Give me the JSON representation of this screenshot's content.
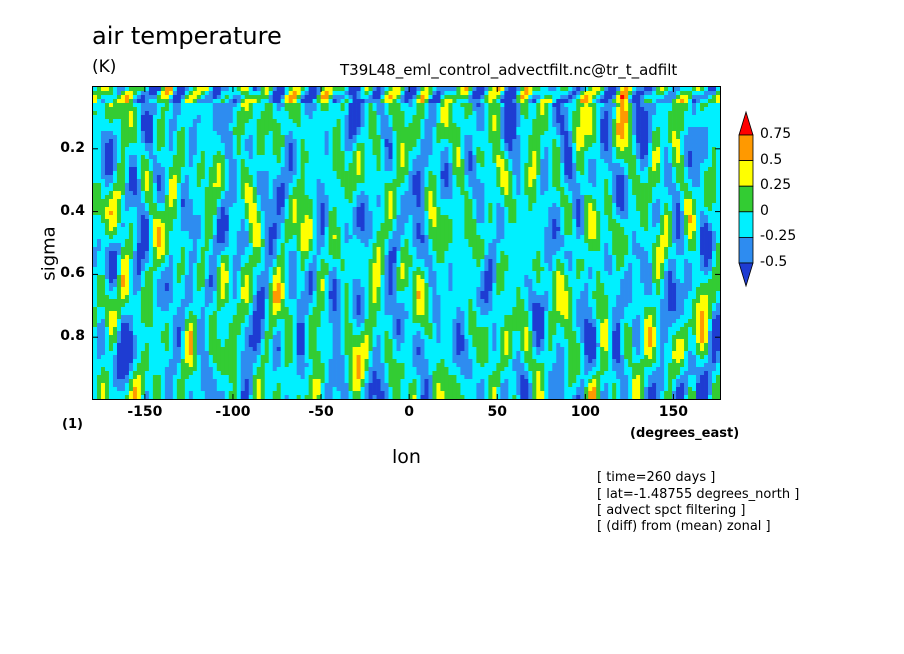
{
  "chart_data": {
    "type": "heatmap",
    "title": "air temperature",
    "units": "(K)",
    "source": "T39L48_eml_control_advectfilt.nc@tr_t_adfilt",
    "xlabel": "lon",
    "xunits": "(degrees_east)",
    "ylabel": "sigma",
    "multiplier_label": "(1)",
    "xlim": [
      -180,
      177
    ],
    "ylim": [
      1.0,
      0.0
    ],
    "x_ticks": [
      "-150",
      "-100",
      "-50",
      "0",
      "50",
      "100",
      "150"
    ],
    "x_tick_values": [
      -150,
      -100,
      -50,
      0,
      50,
      100,
      150
    ],
    "y_ticks": [
      "0.2",
      "0.4",
      "0.6",
      "0.8"
    ],
    "y_tick_values": [
      0.2,
      0.4,
      0.6,
      0.8
    ],
    "colorbar": {
      "levels": [
        "0.75",
        "0.5",
        "0.25",
        "0",
        "-0.25",
        "-0.5"
      ],
      "level_values": [
        0.75,
        0.5,
        0.25,
        0,
        -0.25,
        -0.5
      ],
      "colors": [
        "#ff0000",
        "#ff9900",
        "#ffff00",
        "#33cc33",
        "#00f0ff",
        "#2e8cf0",
        "#1e3cd2"
      ]
    },
    "annotations": [
      "[ time=260 days ]",
      "[ lat=-1.48755 degrees_north ]",
      "[ advect spct filtering ]",
      "[ (diff) from (mean) zonal ]"
    ]
  }
}
